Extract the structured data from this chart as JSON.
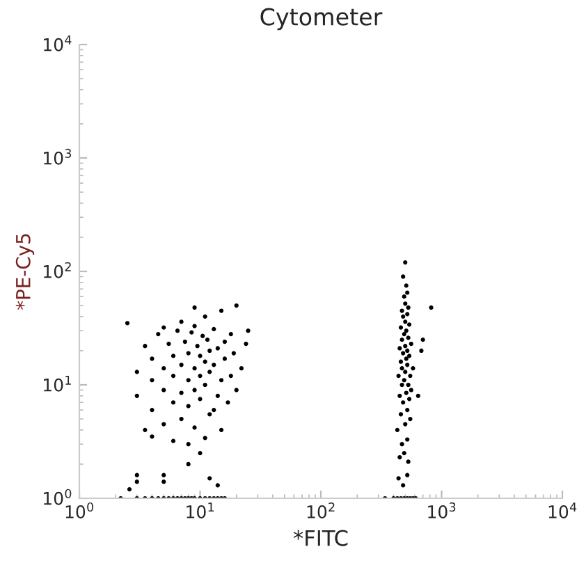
{
  "chart_data": {
    "type": "scatter",
    "title": "Cytometer",
    "xlabel": "*FITC",
    "ylabel": "*PE-Cy5",
    "log": "xy",
    "marker": "circle",
    "grid": false,
    "xlim": [
      1,
      10000
    ],
    "ylim": [
      1,
      10000
    ],
    "xticks": [
      {
        "value": 1,
        "label": "10$^{0}$"
      },
      {
        "value": 10,
        "label": "10$^{1}$"
      },
      {
        "value": 100,
        "label": "10$^{2}$"
      },
      {
        "value": 1000,
        "label": "10$^{3}$"
      },
      {
        "value": 10000,
        "label": "10$^{4}$"
      }
    ],
    "yticks": [
      {
        "value": 1,
        "label": "10$^{0}$"
      },
      {
        "value": 10,
        "label": "10$^{1}$"
      },
      {
        "value": 100,
        "label": "10$^{2}$"
      },
      {
        "value": 1000,
        "label": "10$^{3}$"
      },
      {
        "value": 10000,
        "label": "10$^{4}$"
      }
    ],
    "series": [
      {
        "color": "#000000",
        "x": [
          2.2,
          3,
          3.5,
          4,
          4.5,
          5,
          5.5,
          6,
          6.5,
          7,
          7.5,
          8,
          8.5,
          9,
          10,
          11,
          12,
          13,
          14,
          15,
          16,
          3,
          3,
          5,
          5,
          2.6,
          12,
          14,
          8,
          10,
          8,
          11,
          4,
          6,
          3.5,
          5,
          7,
          9,
          12,
          15,
          4,
          6,
          8,
          10,
          13,
          17,
          3,
          5,
          7,
          9,
          11,
          14,
          20,
          4,
          6,
          8,
          10,
          12,
          15,
          18,
          3,
          5,
          7,
          9,
          11,
          13,
          16,
          22,
          4,
          6,
          8,
          10,
          12,
          14,
          19,
          3.5,
          5.5,
          7.5,
          9.5,
          11.5,
          16,
          24,
          4.5,
          6.5,
          8.5,
          10.5,
          13,
          18,
          25,
          2.5,
          7,
          11,
          15,
          9,
          20,
          5,
          9
        ],
        "values": [
          1,
          1,
          1,
          1,
          1,
          1,
          1,
          1,
          1,
          1,
          1,
          1,
          1,
          1,
          1,
          1,
          1,
          1,
          1,
          1,
          1,
          1.6,
          1.4,
          1.6,
          1.4,
          1.2,
          1.5,
          1.3,
          2,
          2.5,
          3,
          3.4,
          3.5,
          3.2,
          4,
          4.5,
          5,
          4.2,
          5.5,
          4,
          6,
          7,
          6.5,
          7.5,
          6,
          7,
          8,
          9,
          8.5,
          9,
          10,
          8,
          9,
          11,
          12,
          11,
          12,
          13,
          11,
          12,
          13,
          14,
          15,
          14,
          16,
          15,
          17,
          14,
          17,
          18,
          19,
          18,
          20,
          21,
          19,
          22,
          23,
          24,
          22,
          25,
          24,
          23,
          28,
          30,
          29,
          27,
          31,
          28,
          30,
          35,
          36,
          40,
          45,
          48,
          50,
          32,
          33
        ]
      },
      {
        "color": "#000000",
        "x": [
          400,
          430,
          460,
          490,
          520,
          550,
          580,
          610,
          340,
          440,
          480,
          520,
          450,
          490,
          530,
          470,
          520,
          430,
          500,
          550,
          460,
          520,
          480,
          540,
          450,
          510,
          560,
          470,
          530,
          490,
          440,
          550,
          500,
          470,
          520,
          580,
          460,
          510,
          540,
          480,
          520,
          450,
          500,
          560,
          470,
          530,
          490,
          510,
          460,
          540,
          500,
          480,
          520,
          470,
          530,
          500,
          490,
          520,
          510,
          480,
          500,
          640,
          680,
          700,
          820
        ],
        "values": [
          1,
          1,
          1,
          1,
          1,
          1,
          1,
          1,
          1,
          1.5,
          1.3,
          1.6,
          2.3,
          2.5,
          2.1,
          3,
          3.3,
          4,
          4.5,
          5,
          5.5,
          6,
          7,
          7.5,
          8,
          8.5,
          9,
          10,
          10,
          11,
          12,
          12,
          13,
          14,
          15,
          14,
          16,
          17,
          18,
          19,
          20,
          21,
          22,
          23,
          25,
          26,
          28,
          30,
          32,
          34,
          36,
          40,
          42,
          45,
          48,
          52,
          60,
          65,
          75,
          90,
          120,
          8,
          20,
          25,
          48
        ]
      }
    ]
  }
}
